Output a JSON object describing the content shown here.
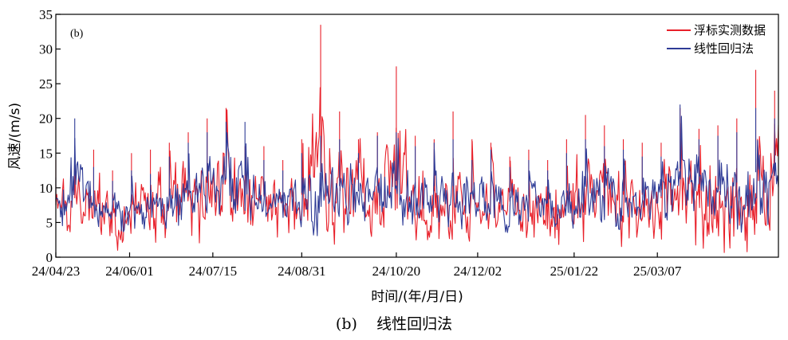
{
  "chart_data": {
    "type": "line",
    "panel_label": "(b)",
    "ylabel": "风速/(m/s)",
    "xlabel": "时间/(年/月/日)",
    "ylim": [
      0,
      35
    ],
    "yticks": [
      0,
      5,
      10,
      15,
      20,
      25,
      30,
      35
    ],
    "x_start": "24/04/23",
    "x_end": "25/05/10",
    "x_tick_labels": [
      "24/04/23",
      "24/06/01",
      "24/07/15",
      "24/08/31",
      "24/10/20",
      "24/12/02",
      "25/01/22",
      "25/03/07"
    ],
    "legend_position": "top-right",
    "series": [
      {
        "name": "浮标实测数据",
        "color": "#e8202a",
        "x": [
          "24/04/23",
          "24/05/03",
          "24/05/13",
          "24/05/23",
          "24/06/02",
          "24/06/12",
          "24/06/22",
          "24/07/02",
          "24/07/12",
          "24/07/22",
          "24/08/01",
          "24/08/11",
          "24/08/21",
          "24/08/31",
          "24/09/10",
          "24/09/20",
          "24/09/30",
          "24/10/10",
          "24/10/20",
          "24/10/30",
          "24/11/09",
          "24/11/19",
          "24/11/29",
          "24/12/09",
          "24/12/19",
          "24/12/29",
          "25/01/08",
          "25/01/18",
          "25/01/28",
          "25/02/07",
          "25/02/17",
          "25/02/27",
          "25/03/09",
          "25/03/19",
          "25/03/29",
          "25/04/08",
          "25/04/18",
          "25/04/28",
          "25/05/08"
        ],
        "min": [
          1.0,
          1.0,
          1.5,
          1.0,
          1.0,
          1.0,
          1.5,
          1.0,
          1.5,
          3.0,
          2.0,
          1.5,
          1.5,
          1.0,
          0.5,
          1.0,
          2.0,
          2.5,
          2.0,
          2.5,
          2.0,
          1.0,
          2.5,
          2.0,
          1.5,
          1.5,
          0.5,
          1.0,
          1.0,
          2.0,
          1.0,
          1.5,
          0.5,
          1.0,
          1.5,
          0.5,
          1.0,
          0.5,
          2.0
        ],
        "max": [
          14.0,
          16.0,
          15.5,
          12.5,
          15.0,
          15.5,
          16.5,
          18.0,
          20.0,
          21.5,
          16.0,
          16.0,
          14.0,
          17.0,
          33.5,
          21.0,
          17.0,
          18.0,
          27.5,
          17.5,
          17.0,
          21.0,
          17.0,
          16.5,
          14.5,
          15.5,
          14.0,
          17.0,
          20.5,
          19.0,
          17.0,
          16.5,
          16.5,
          21.5,
          18.5,
          19.0,
          20.0,
          27.0,
          24.0
        ]
      },
      {
        "name": "线性回归法",
        "color": "#2e3b96",
        "x": [
          "24/04/23",
          "24/05/03",
          "24/05/13",
          "24/05/23",
          "24/06/02",
          "24/06/12",
          "24/06/22",
          "24/07/02",
          "24/07/12",
          "24/07/22",
          "24/08/01",
          "24/08/11",
          "24/08/21",
          "24/08/31",
          "24/09/10",
          "24/09/20",
          "24/09/30",
          "24/10/10",
          "24/10/20",
          "24/10/30",
          "24/11/09",
          "24/11/19",
          "24/11/29",
          "24/12/09",
          "24/12/19",
          "24/12/29",
          "25/01/08",
          "25/01/18",
          "25/01/28",
          "25/02/07",
          "25/02/17",
          "25/02/27",
          "25/03/09",
          "25/03/19",
          "25/03/29",
          "25/04/08",
          "25/04/18",
          "25/04/28",
          "25/05/08"
        ],
        "min": [
          3.5,
          3.5,
          4.0,
          3.5,
          3.5,
          3.5,
          3.5,
          3.5,
          4.0,
          5.0,
          4.0,
          4.0,
          3.5,
          3.5,
          3.0,
          3.5,
          4.0,
          4.0,
          4.0,
          4.0,
          4.0,
          3.5,
          4.5,
          4.0,
          3.5,
          3.5,
          3.0,
          3.5,
          3.5,
          4.0,
          3.5,
          4.0,
          3.0,
          3.5,
          4.0,
          3.0,
          3.5,
          3.0,
          4.0
        ],
        "max": [
          11.5,
          20.0,
          13.0,
          11.0,
          12.5,
          12.0,
          14.5,
          16.5,
          18.0,
          19.5,
          19.5,
          14.0,
          12.5,
          15.0,
          17.5,
          17.0,
          15.0,
          17.5,
          18.0,
          16.0,
          16.5,
          17.0,
          14.0,
          15.5,
          13.0,
          14.0,
          12.5,
          15.0,
          17.0,
          16.0,
          15.5,
          14.5,
          14.5,
          22.0,
          17.0,
          17.5,
          18.0,
          21.5,
          20.0
        ]
      }
    ]
  },
  "caption": {
    "label": "(b)",
    "title": "线性回归法"
  }
}
